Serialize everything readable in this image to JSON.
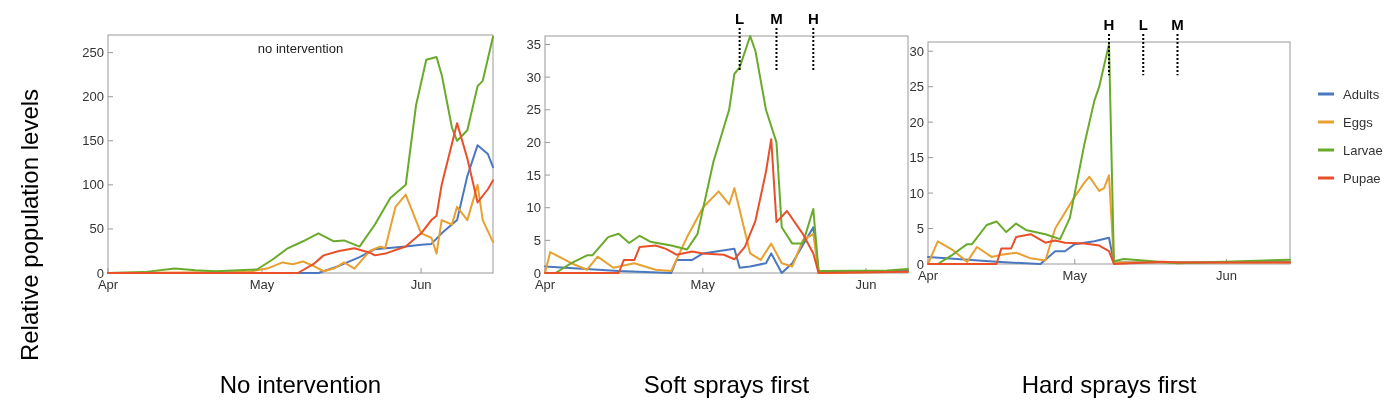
{
  "chart_data": [
    {
      "type": "line",
      "xlabel": "No intervention",
      "ylabel": "Relative population levels",
      "annotations": [
        "no intervention"
      ],
      "xlim": [
        "--04-01",
        "--06-15"
      ],
      "xticks": [
        {
          "value": "--04-01",
          "label": "Apr"
        },
        {
          "value": "--05-01",
          "label": "May"
        },
        {
          "value": "--06-01",
          "label": "Jun"
        }
      ],
      "ylim": [
        0,
        270
      ],
      "yticks": [
        0,
        50,
        100,
        150,
        200,
        250
      ],
      "grid": false,
      "legend": false,
      "marker": "none",
      "line_style": "solid",
      "series": [
        {
          "color": "#4a77c0",
          "x": [
            "--04-01",
            "--05-12",
            "--05-16",
            "--05-20",
            "--05-23",
            "--05-29",
            "--06-01",
            "--06-03",
            "--06-05",
            "--06-08",
            "--06-10",
            "--06-12",
            "--06-14",
            "--06-15"
          ],
          "values": [
            0,
            0,
            8,
            18,
            27,
            30,
            32,
            33,
            45,
            60,
            110,
            145,
            135,
            120
          ]
        },
        {
          "color": "#e8a030",
          "x": [
            "--04-01",
            "--04-28",
            "--05-02",
            "--05-05",
            "--05-07",
            "--05-09",
            "--05-11",
            "--05-13",
            "--05-15",
            "--05-17",
            "--05-19",
            "--05-22",
            "--05-24",
            "--05-25",
            "--05-27",
            "--05-29",
            "--06-01",
            "--06-03",
            "--06-04",
            "--06-05",
            "--06-07",
            "--06-08",
            "--06-10",
            "--06-12",
            "--06-13",
            "--06-15"
          ],
          "values": [
            0,
            1,
            5,
            12,
            10,
            13,
            8,
            2,
            5,
            12,
            5,
            25,
            30,
            28,
            75,
            89,
            45,
            40,
            22,
            60,
            55,
            75,
            60,
            100,
            60,
            35
          ]
        },
        {
          "color": "#6aaa2a",
          "x": [
            "--04-01",
            "--04-08",
            "--04-14",
            "--04-18",
            "--04-22",
            "--04-30",
            "--05-03",
            "--05-06",
            "--05-09",
            "--05-12",
            "--05-15",
            "--05-17",
            "--05-20",
            "--05-23",
            "--05-26",
            "--05-29",
            "--05-31",
            "--06-02",
            "--06-04",
            "--06-05",
            "--06-07",
            "--06-08",
            "--06-10",
            "--06-12",
            "--06-13",
            "--06-15"
          ],
          "values": [
            0,
            1,
            5,
            3,
            2,
            4,
            15,
            28,
            36,
            45,
            36,
            37,
            30,
            55,
            85,
            100,
            190,
            242,
            245,
            225,
            165,
            150,
            162,
            212,
            218,
            268
          ]
        },
        {
          "color": "#e8502a",
          "x": [
            "--04-01",
            "--05-08",
            "--05-11",
            "--05-13",
            "--05-16",
            "--05-19",
            "--05-22",
            "--05-23",
            "--05-25",
            "--05-29",
            "--06-01",
            "--06-03",
            "--06-04",
            "--06-05",
            "--06-08",
            "--06-10",
            "--06-12",
            "--06-14",
            "--06-15"
          ],
          "values": [
            0,
            0,
            10,
            20,
            25,
            28,
            23,
            20,
            22,
            30,
            45,
            60,
            65,
            100,
            170,
            130,
            80,
            95,
            105
          ]
        }
      ]
    },
    {
      "type": "line",
      "xlabel": "Soft sprays first",
      "xlim": [
        "--04-01",
        "--06-09"
      ],
      "xticks": [
        {
          "value": "--04-01",
          "label": "Apr"
        },
        {
          "value": "--05-01",
          "label": "May"
        },
        {
          "value": "--06-01",
          "label": "Jun"
        }
      ],
      "ylim": [
        0,
        36.3
      ],
      "yticks": [
        0,
        5,
        10,
        15,
        20,
        25,
        30,
        35
      ],
      "grid": false,
      "legend": false,
      "marker": "none",
      "line_style": "solid",
      "ref_lines": [
        {
          "axis": "x",
          "value": "--05-08",
          "label": "L",
          "line_style": "dotted",
          "color": "#000000"
        },
        {
          "axis": "x",
          "value": "--05-15",
          "label": "M",
          "line_style": "dotted",
          "color": "#000000"
        },
        {
          "axis": "x",
          "value": "--05-22",
          "label": "H",
          "line_style": "dotted",
          "color": "#000000"
        }
      ],
      "series": [
        {
          "color": "#4a77c0",
          "x": [
            "--04-01",
            "--04-15",
            "--04-25",
            "--04-26",
            "--04-29",
            "--05-01",
            "--05-07",
            "--05-08",
            "--05-10",
            "--05-13",
            "--05-14",
            "--05-16",
            "--05-18",
            "--05-22",
            "--05-23",
            "--06-09"
          ],
          "values": [
            1,
            0.3,
            0,
            2,
            2,
            3,
            3.7,
            0.8,
            1,
            1.5,
            3,
            0,
            1.5,
            7,
            0.3,
            0.3
          ]
        },
        {
          "color": "#e8a030",
          "x": [
            "--04-01",
            "--04-02",
            "--04-06",
            "--04-09",
            "--04-11",
            "--04-14",
            "--04-18",
            "--04-22",
            "--04-25",
            "--04-28",
            "--05-01",
            "--05-04",
            "--05-06",
            "--05-07",
            "--05-10",
            "--05-12",
            "--05-14",
            "--05-16",
            "--05-18",
            "--05-20",
            "--05-22",
            "--05-23",
            "--06-09"
          ],
          "values": [
            0,
            3.2,
            1.5,
            0.5,
            2.5,
            0.8,
            1.5,
            0.5,
            0.3,
            5.5,
            10,
            12.5,
            10.5,
            13,
            3,
            2,
            4.5,
            1.5,
            1,
            5,
            6,
            0,
            0.2
          ]
        },
        {
          "color": "#6aaa2a",
          "x": [
            "--04-03",
            "--04-06",
            "--04-09",
            "--04-10",
            "--04-13",
            "--04-15",
            "--04-17",
            "--04-19",
            "--04-21",
            "--04-25",
            "--04-28",
            "--04-30",
            "--05-03",
            "--05-06",
            "--05-07",
            "--05-08",
            "--05-10",
            "--05-11",
            "--05-13",
            "--05-15",
            "--05-16",
            "--05-18",
            "--05-20",
            "--05-22",
            "--05-23",
            "--06-05",
            "--06-09"
          ],
          "values": [
            0,
            1.5,
            2.7,
            2.7,
            5.5,
            6,
            4.6,
            5.7,
            4.8,
            4.2,
            3.6,
            6,
            17,
            25,
            30.5,
            31.5,
            36.3,
            34,
            25,
            20,
            7,
            4.5,
            4.5,
            9.8,
            0.3,
            0.4,
            0.6
          ]
        },
        {
          "color": "#e8502a",
          "x": [
            "--04-01",
            "--04-15",
            "--04-16",
            "--04-18",
            "--04-19",
            "--04-22",
            "--04-24",
            "--04-26",
            "--04-29",
            "--05-01",
            "--05-05",
            "--05-07",
            "--05-09",
            "--05-11",
            "--05-13",
            "--05-14",
            "--05-15",
            "--05-17",
            "--05-20",
            "--05-22",
            "--05-23",
            "--06-09"
          ],
          "values": [
            0,
            0,
            2,
            2,
            4,
            4.2,
            3.7,
            2.8,
            3.3,
            3,
            2.8,
            2.1,
            4,
            8,
            15.5,
            20.5,
            7.8,
            9.5,
            6,
            3,
            0,
            0.2
          ]
        }
      ]
    },
    {
      "type": "line",
      "xlabel": "Hard sprays first",
      "xlim": [
        "--04-01",
        "--06-14"
      ],
      "xticks": [
        {
          "value": "--04-01",
          "label": "Apr"
        },
        {
          "value": "--05-01",
          "label": "May"
        },
        {
          "value": "--06-01",
          "label": "Jun"
        }
      ],
      "ylim": [
        0,
        31.3
      ],
      "yticks": [
        0,
        5,
        10,
        15,
        20,
        25,
        30
      ],
      "grid": false,
      "legend": "right",
      "marker": "none",
      "line_style": "solid",
      "ref_lines": [
        {
          "axis": "x",
          "value": "--05-08",
          "label": "H",
          "line_style": "dotted",
          "color": "#000000"
        },
        {
          "axis": "x",
          "value": "--05-15",
          "label": "L",
          "line_style": "dotted",
          "color": "#000000"
        },
        {
          "axis": "x",
          "value": "--05-22",
          "label": "M",
          "line_style": "dotted",
          "color": "#000000"
        }
      ],
      "series": [
        {
          "name": "Adults",
          "color": "#4a77c0",
          "x": [
            "--04-01",
            "--04-15",
            "--04-24",
            "--04-27",
            "--04-29",
            "--05-01",
            "--05-05",
            "--05-08",
            "--05-09",
            "--06-14"
          ],
          "values": [
            1,
            0.3,
            0,
            1.8,
            1.8,
            2.8,
            3.2,
            3.7,
            0.2,
            0.3
          ]
        },
        {
          "name": "Eggs",
          "color": "#e8a030",
          "x": [
            "--04-01",
            "--04-03",
            "--04-06",
            "--04-09",
            "--04-11",
            "--04-14",
            "--04-16",
            "--04-19",
            "--04-22",
            "--04-25",
            "--04-27",
            "--05-01",
            "--05-03",
            "--05-04",
            "--05-06",
            "--05-07",
            "--05-08",
            "--05-09",
            "--06-14"
          ],
          "values": [
            0,
            3.2,
            2,
            0.3,
            2.4,
            1,
            1.3,
            1.6,
            0.8,
            0.5,
            5,
            9.5,
            11.5,
            12.3,
            10.3,
            10.7,
            12.5,
            0.2,
            0.2
          ]
        },
        {
          "name": "Larvae",
          "color": "#6aaa2a",
          "x": [
            "--04-03",
            "--04-06",
            "--04-09",
            "--04-10",
            "--04-13",
            "--04-15",
            "--04-17",
            "--04-19",
            "--04-21",
            "--04-25",
            "--04-28",
            "--04-30",
            "--05-03",
            "--05-05",
            "--05-06",
            "--05-08",
            "--05-09",
            "--05-11",
            "--05-15",
            "--05-22",
            "--06-14"
          ],
          "values": [
            0,
            1.3,
            2.8,
            2.8,
            5.5,
            6,
            4.5,
            5.7,
            4.8,
            4.2,
            3.5,
            6.5,
            17,
            23,
            25,
            31,
            0.4,
            0.7,
            0.5,
            0.1,
            0.6
          ]
        },
        {
          "name": "Pupae",
          "color": "#e8502a",
          "x": [
            "--04-01",
            "--04-15",
            "--04-16",
            "--04-18",
            "--04-19",
            "--04-22",
            "--04-25",
            "--04-27",
            "--04-29",
            "--05-03",
            "--05-06",
            "--05-08",
            "--05-09",
            "--05-19",
            "--05-22",
            "--06-14"
          ],
          "values": [
            0,
            0,
            2.2,
            2.2,
            3.8,
            4.2,
            3,
            3.3,
            3,
            2.9,
            2.6,
            1.8,
            0,
            0.3,
            0.2,
            0.2
          ]
        }
      ]
    }
  ]
}
